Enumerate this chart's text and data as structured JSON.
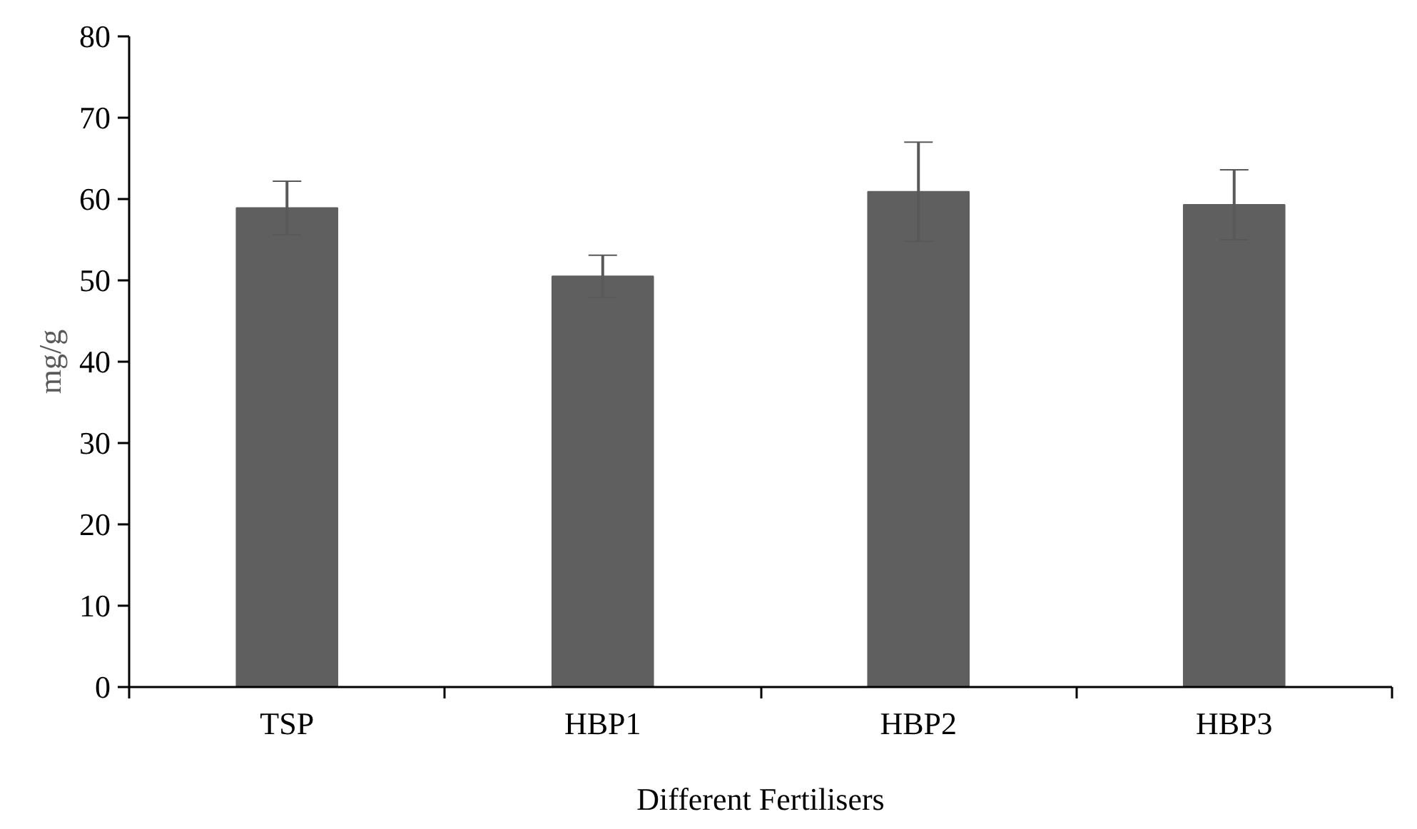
{
  "chart_data": {
    "type": "bar",
    "xlabel": "Different Fertilisers",
    "ylabel": "mg/g",
    "categories": [
      "TSP",
      "HBP1",
      "HBP2",
      "HBP3"
    ],
    "values": [
      58.9,
      50.5,
      60.9,
      59.3
    ],
    "errors": [
      3.3,
      2.6,
      6.1,
      4.3
    ],
    "color": "#5f5f5f",
    "ylim": [
      0,
      80
    ],
    "yticks": [
      0,
      10,
      20,
      30,
      40,
      50,
      60,
      70,
      80
    ],
    "grid": false
  }
}
